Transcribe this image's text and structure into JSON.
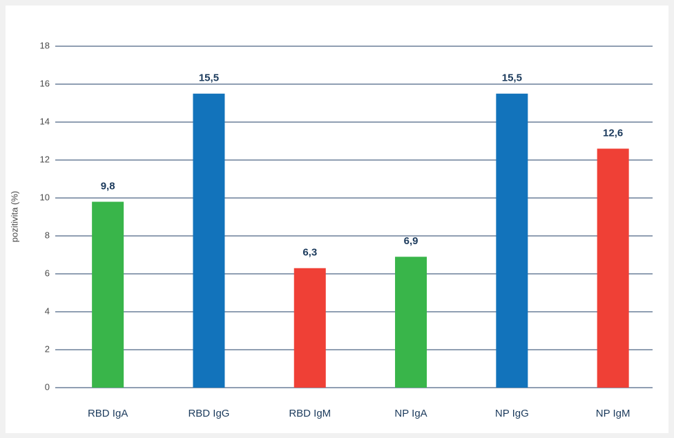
{
  "chart_data": {
    "type": "bar",
    "y_label": "pozitivita (%)",
    "categories": [
      "RBD IgA",
      "RBD IgG",
      "RBD IgM",
      "NP IgA",
      "NP IgG",
      "NP IgM"
    ],
    "values": [
      9.8,
      15.5,
      6.3,
      6.9,
      15.5,
      12.6
    ],
    "value_labels": [
      "9,8",
      "15,5",
      "6,3",
      "6,9",
      "15,5",
      "12,6"
    ],
    "colors": [
      "#39b54a",
      "#1273bb",
      "#ef4036",
      "#39b54a",
      "#1273bb",
      "#ef4036"
    ],
    "ylim": [
      0,
      18
    ],
    "yticks": [
      0,
      2,
      4,
      6,
      8,
      10,
      12,
      14,
      16,
      18
    ],
    "grid": true
  }
}
